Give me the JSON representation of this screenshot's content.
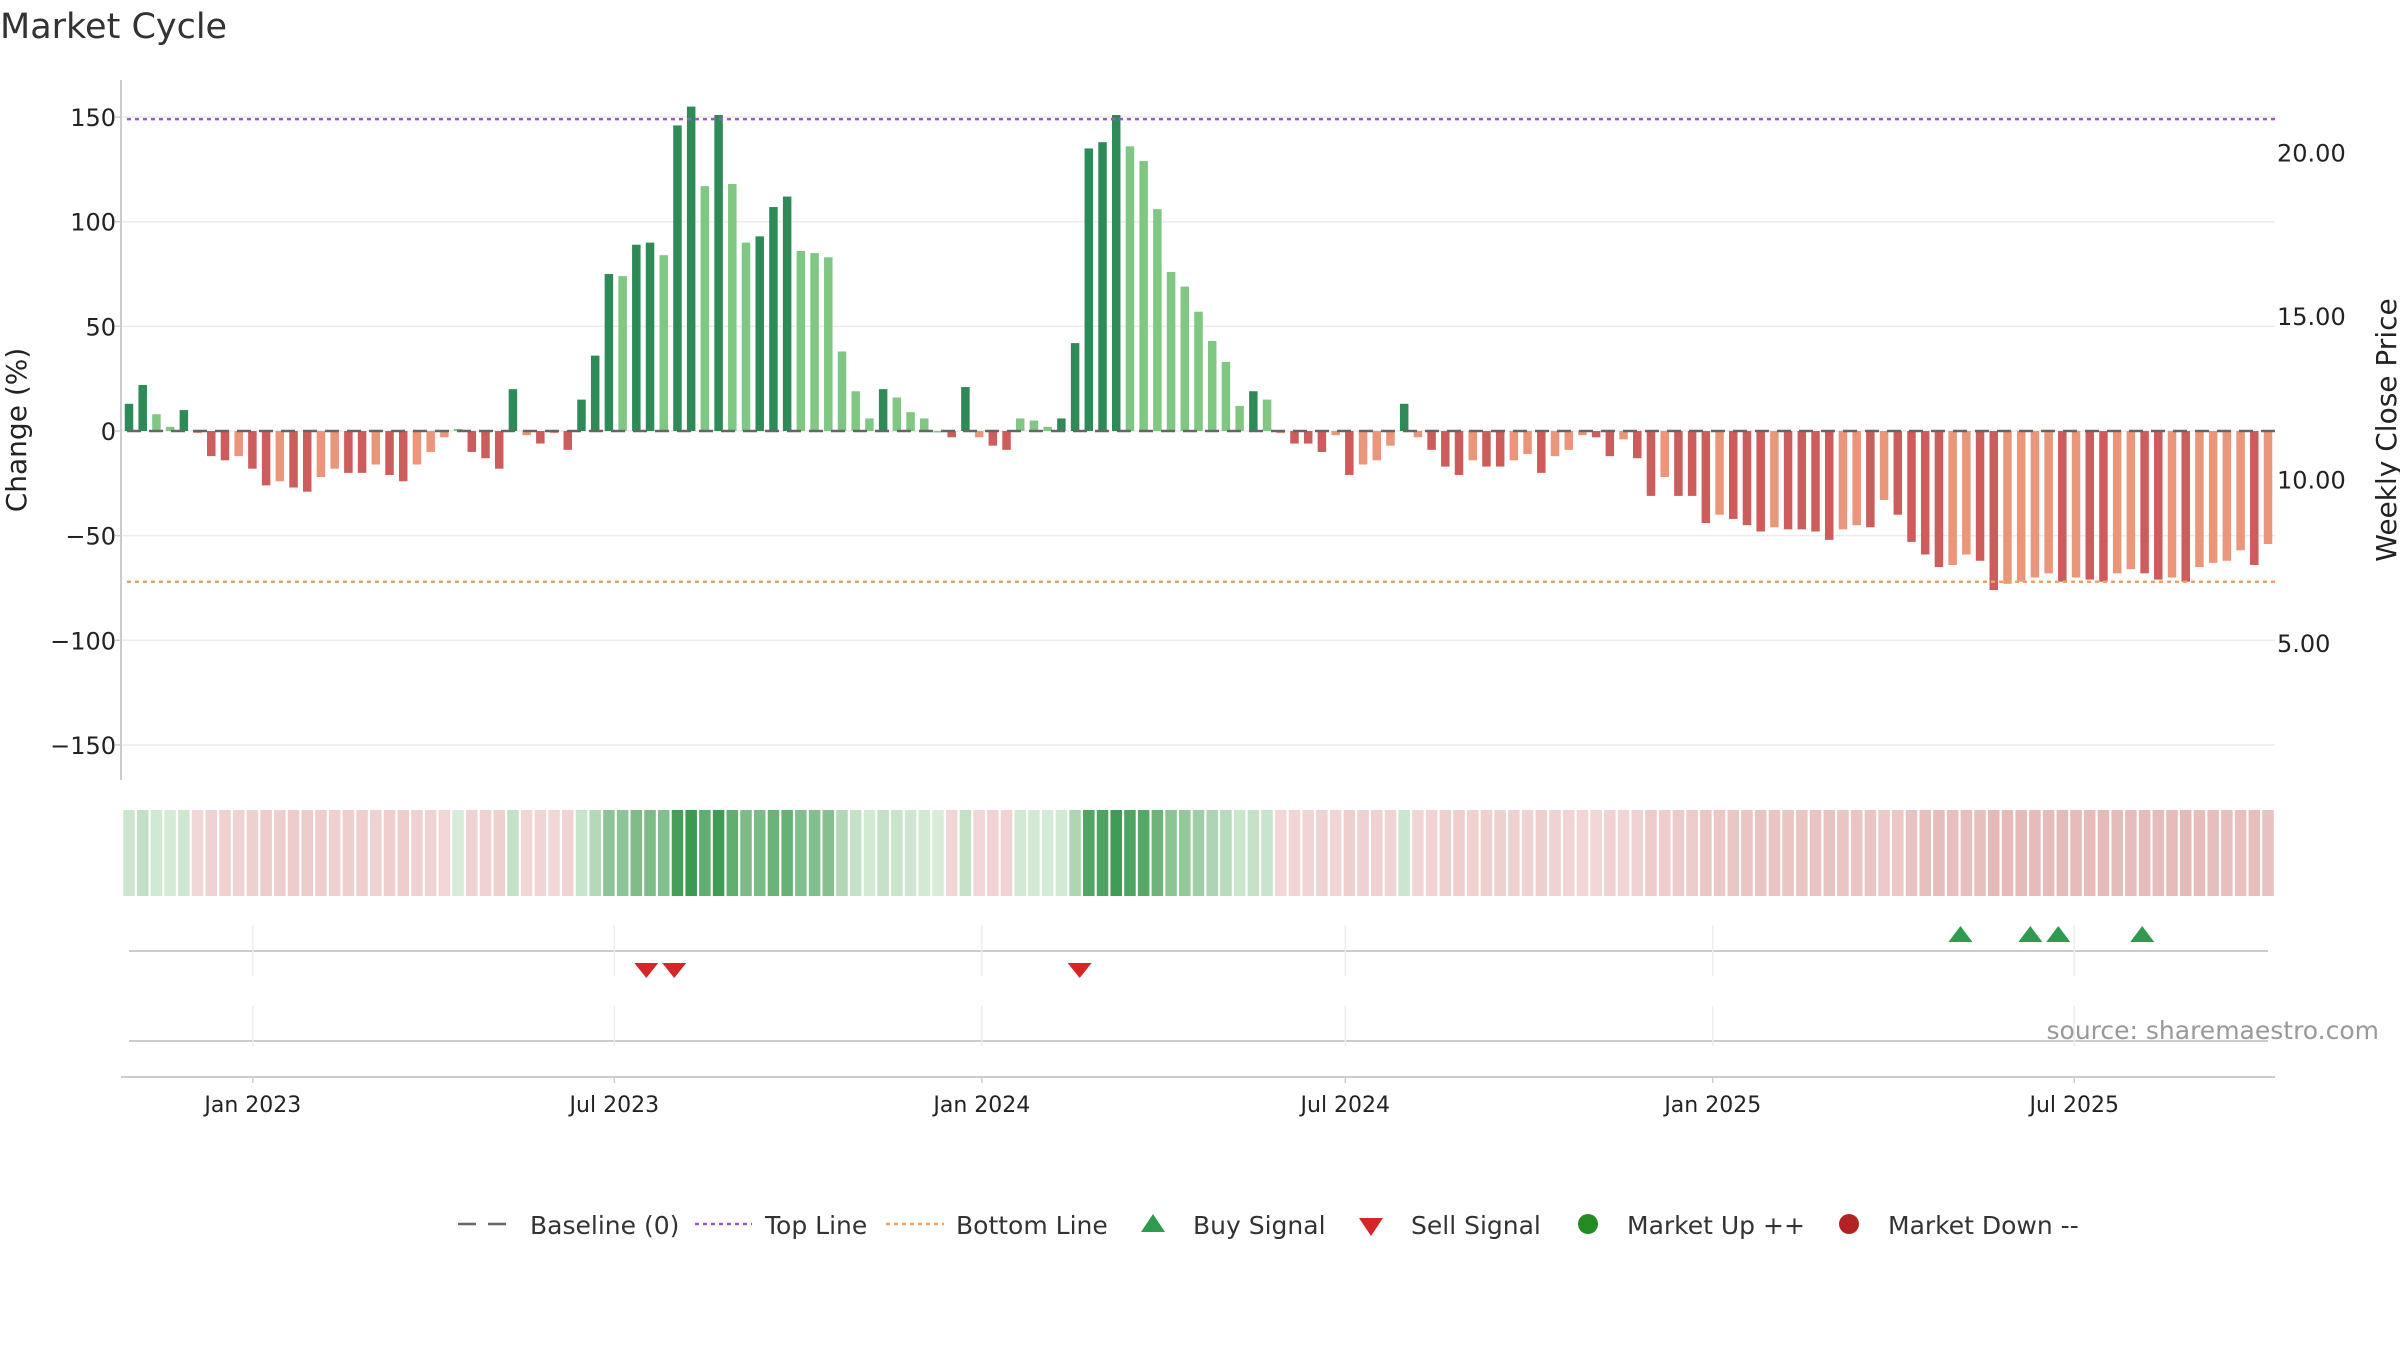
{
  "title": "Market Cycle",
  "source_note": "source: sharemaestro.com",
  "colors": {
    "up_strong": "#2e8b57",
    "up_weak": "#81c784",
    "down_strong": "#cd5c5c",
    "down_weak": "#e9967a",
    "top_line": "#9b59d0",
    "bottom_line": "#f0a060",
    "baseline": "#666666",
    "buy_marker": "#2e9b4e",
    "sell_marker": "#d62728",
    "market_up": "#228b22",
    "market_down": "#b22222"
  },
  "legend": [
    {
      "label": "Baseline (0)",
      "icon": "dash-line"
    },
    {
      "label": "Top Line",
      "icon": "dotted-purple-line"
    },
    {
      "label": "Bottom Line",
      "icon": "dotted-orange-line"
    },
    {
      "label": "Buy Signal",
      "icon": "triangle-up-green"
    },
    {
      "label": "Sell Signal",
      "icon": "triangle-down-red"
    },
    {
      "label": "Market Up ++",
      "icon": "circle-green"
    },
    {
      "label": "Market Down --",
      "icon": "circle-red"
    }
  ],
  "chart_data": {
    "type": "bar",
    "title": "Market Cycle",
    "ylabel": "Change (%)",
    "y2label": "Weekly Close Price",
    "ylim": [
      -170,
      170
    ],
    "yticks": [
      150,
      100,
      50,
      0,
      -50,
      -100,
      -150
    ],
    "ytick_labels": [
      "150",
      "100",
      "50",
      "0",
      "−50",
      "−100",
      "−150"
    ],
    "y2ticks": [
      20,
      15,
      10,
      5
    ],
    "y2tick_labels": [
      "20.00",
      "15.00",
      "10.00",
      "5.00"
    ],
    "top_line": 149,
    "bottom_line": -72,
    "baseline": 0,
    "grid": true,
    "x_start": "2022-10-31",
    "x_end": "2025-10-06",
    "x_interval": "weekly",
    "xtick_dates": [
      "2023-01-01",
      "2023-07-01",
      "2024-01-01",
      "2024-07-01",
      "2025-01-01",
      "2025-07-01"
    ],
    "xtick_labels": [
      "Jan 2023",
      "Jul 2023",
      "Jan 2024",
      "Jul 2024",
      "Jan 2025",
      "Jul 2025"
    ],
    "values": [
      13,
      22,
      8,
      2,
      10,
      -1,
      -12,
      -14,
      -12,
      -18,
      -26,
      -24,
      -27,
      -29,
      -22,
      -18,
      -20,
      -20,
      -16,
      -21,
      -24,
      -16,
      -10,
      -3,
      1,
      -10,
      -13,
      -18,
      20,
      -2,
      -6,
      -1,
      -9,
      15,
      36,
      75,
      74,
      89,
      90,
      84,
      146,
      155,
      117,
      151,
      118,
      90,
      93,
      107,
      112,
      86,
      85,
      83,
      38,
      19,
      6,
      20,
      16,
      9,
      6,
      0,
      -3,
      21,
      -3,
      -7,
      -9,
      6,
      5,
      2,
      6,
      42,
      135,
      138,
      151,
      136,
      129,
      106,
      76,
      69,
      57,
      43,
      33,
      12,
      19,
      15,
      -1,
      -6,
      -6,
      -10,
      -2,
      -21,
      -16,
      -14,
      -7,
      13,
      -3,
      -9,
      -17,
      -21,
      -14,
      -17,
      -17,
      -14,
      -11,
      -20,
      -12,
      -9,
      -2,
      -3,
      -12,
      -4,
      -13,
      -31,
      -22,
      -31,
      -31,
      -44,
      -40,
      -42,
      -45,
      -48,
      -46,
      -47,
      -47,
      -48,
      -52,
      -47,
      -45,
      -46,
      -33,
      -40,
      -53,
      -59,
      -65,
      -64,
      -59,
      -62,
      -76,
      -73,
      -72,
      -70,
      -68,
      -72,
      -70,
      -71,
      -72,
      -68,
      -66,
      -68,
      -71,
      -70,
      -72,
      -65,
      -63,
      -62,
      -57,
      -64,
      -54
    ],
    "buy_signals": [
      "2025-05-05",
      "2025-06-09",
      "2025-06-23",
      "2025-08-04"
    ],
    "sell_signals": [
      "2023-07-17",
      "2023-07-31",
      "2024-02-19"
    ]
  }
}
